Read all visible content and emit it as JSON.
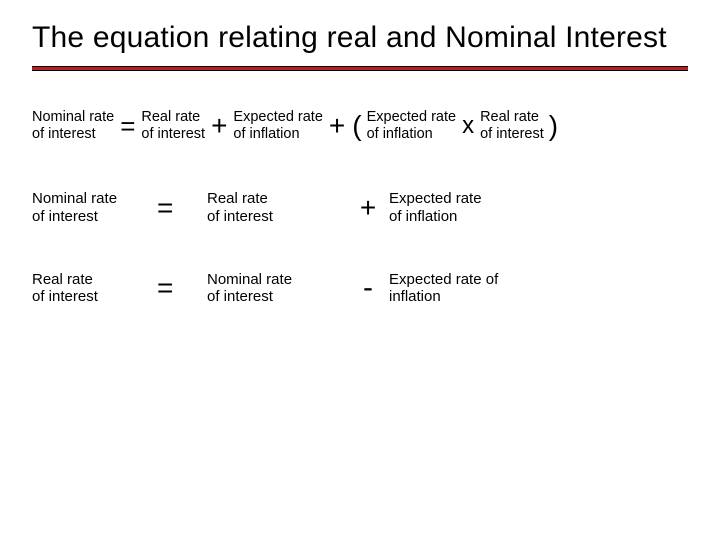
{
  "title": "The equation relating real and Nominal Interest",
  "colors": {
    "rule": "#b22222",
    "text": "#000000",
    "background": "#ffffff"
  },
  "typography": {
    "family": "Verdana, Arial, sans-serif",
    "title_fontsize": 30,
    "body_fontsize": 15,
    "operator_fontsize": 28
  },
  "eq1": {
    "t1_l1": "Nominal rate",
    "t1_l2": "of interest",
    "eq": "=",
    "t2_l1": "Real rate",
    "t2_l2": "of interest",
    "plus1": "+",
    "t3_l1": "Expected rate",
    "t3_l2": "of inflation",
    "plus2": "+",
    "lparen": "(",
    "t4_l1": "Expected rate",
    "t4_l2": "of inflation",
    "times": "x",
    "t5_l1": "Real rate",
    "t5_l2": "of interest",
    "rparen": ")"
  },
  "eq2": {
    "a_l1": "Nominal rate",
    "a_l2": "of interest",
    "eq": "=",
    "b_l1": "Real rate",
    "b_l2": "of interest",
    "op": "+",
    "c_l1": "Expected rate",
    "c_l2": "of inflation"
  },
  "eq3": {
    "a_l1": "Real rate",
    "a_l2": "of interest",
    "eq": "=",
    "b_l1": "Nominal rate",
    "b_l2": "of interest",
    "op": "-",
    "c_l1": "Expected rate of",
    "c_l2": "inflation"
  }
}
